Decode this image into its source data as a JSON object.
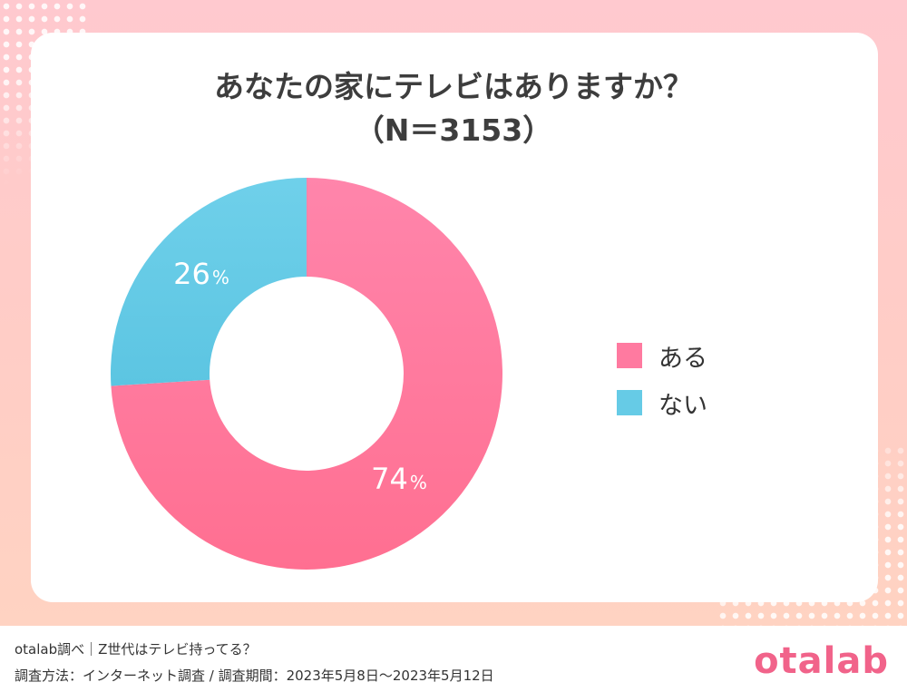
{
  "title": "あなたの家にテレビはありますか？",
  "subtitle": "（N＝3153）",
  "chart_data": {
    "type": "pie",
    "donut": true,
    "categories": [
      "ある",
      "ない"
    ],
    "values": [
      74,
      26
    ],
    "value_labels": [
      "74",
      "26"
    ],
    "unit": "%",
    "colors": [
      "#ff7aa0",
      "#66cbe6"
    ],
    "legend_position": "right"
  },
  "legend": [
    {
      "label": "ある",
      "color": "#ff7aa0"
    },
    {
      "label": "ない",
      "color": "#66cbe6"
    }
  ],
  "footer": {
    "line1": "otalab調べ｜Z世代はテレビ持ってる？",
    "line2": "調査方法：インターネット調査 / 調査期間：2023年5月8日〜2023年5月12日"
  },
  "logo_text": "otalab",
  "colors": {
    "background_top": "#ffc9cf",
    "background_bottom": "#ffd3c2",
    "title": "#3d3d3d",
    "logo": "#f1638a"
  }
}
